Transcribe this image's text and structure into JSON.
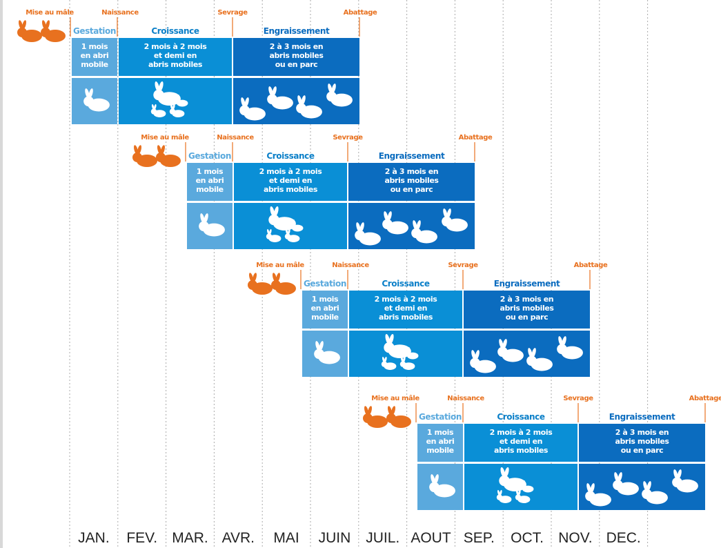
{
  "months": [
    "JAN.",
    "FEV.",
    "MAR.",
    "AVR.",
    "MAI",
    "JUIN",
    "JUIL.",
    "AOUT",
    "SEP.",
    "OCT.",
    "NOV.",
    "DEC."
  ],
  "cycles": [
    {
      "events": [
        "Mise au mâle",
        "Naissance",
        "Sevrage",
        "Abattage"
      ],
      "phases": [
        {
          "title": "Gestation",
          "desc": [
            "1 mois",
            "en abri",
            "mobile"
          ]
        },
        {
          "title": "Croissance",
          "desc": [
            "2 mois à 2 mois",
            "et demi en",
            "abris mobiles"
          ]
        },
        {
          "title": "Engraissement",
          "desc": [
            "2 à 3 mois en",
            "abris mobiles",
            "ou en parc"
          ]
        }
      ]
    },
    {
      "events": [
        "Mise au mâle",
        "Naissance",
        "Sevrage",
        "Abattage"
      ],
      "phases": [
        {
          "title": "Gestation",
          "desc": [
            "1 mois",
            "en abri",
            "mobile"
          ]
        },
        {
          "title": "Croissance",
          "desc": [
            "2 mois à 2 mois",
            "et demi en",
            "abris mobiles"
          ]
        },
        {
          "title": "Engraissement",
          "desc": [
            "2 à 3 mois en",
            "abris mobiles",
            "ou en parc"
          ]
        }
      ]
    },
    {
      "events": [
        "Mise au mâle",
        "Naissance",
        "Sevrage",
        "Abattage"
      ],
      "phases": [
        {
          "title": "Gestation",
          "desc": [
            "1 mois",
            "en abri",
            "mobile"
          ]
        },
        {
          "title": "Croissance",
          "desc": [
            "2 mois à 2 mois",
            "et demi en",
            "abris mobiles"
          ]
        },
        {
          "title": "Engraissement",
          "desc": [
            "2 à 3 mois en",
            "abris mobiles",
            "ou en parc"
          ]
        }
      ]
    },
    {
      "events": [
        "Mise au mâle",
        "Naissance",
        "Sevrage",
        "Abattage"
      ],
      "phases": [
        {
          "title": "Gestation",
          "desc": [
            "1 mois",
            "en abri",
            "mobile"
          ]
        },
        {
          "title": "Croissance",
          "desc": [
            "2 mois à 2 mois",
            "et demi en",
            "abris mobiles"
          ]
        },
        {
          "title": "Engraissement",
          "desc": [
            "2 à 3 mois en",
            "abris mobiles",
            "ou en parc"
          ]
        }
      ]
    }
  ]
}
